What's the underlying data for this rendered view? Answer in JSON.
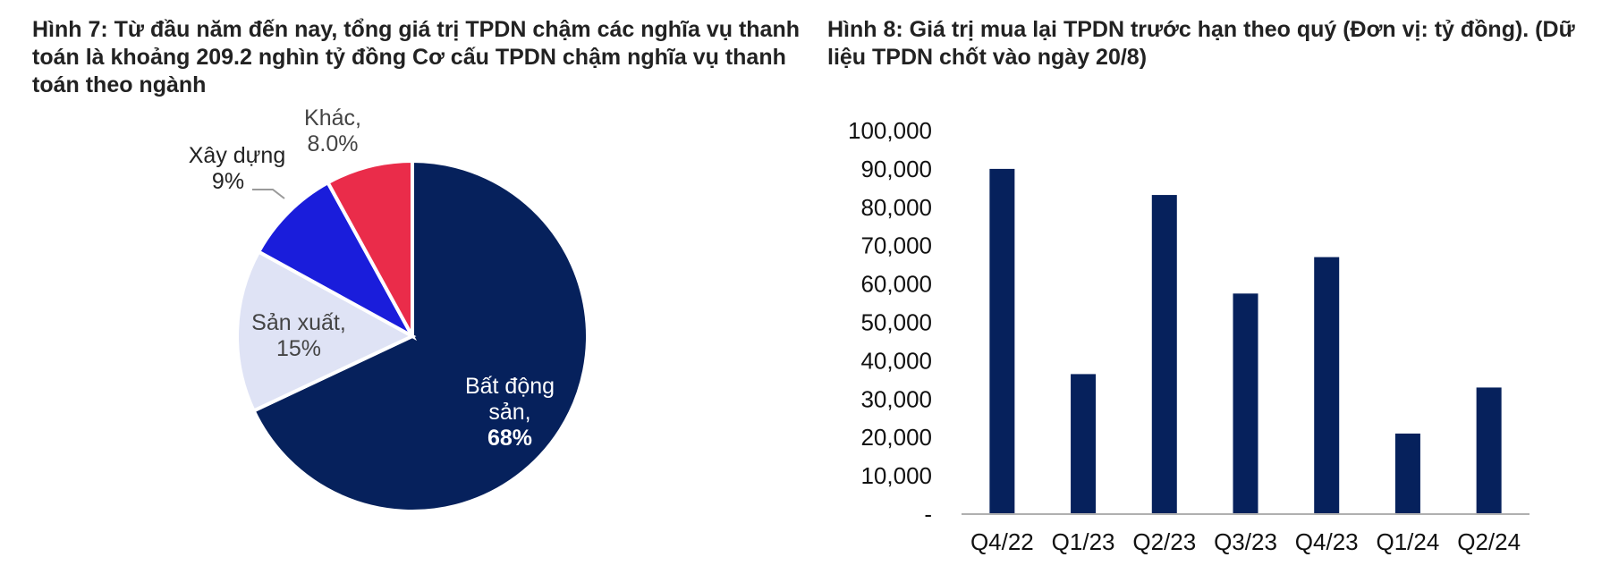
{
  "figures": {
    "fig7_title": "Hình 7: Từ đầu năm đến nay, tổng giá trị TPDN chậm các nghĩa vụ thanh toán là khoảng 209.2 nghìn tỷ đồng Cơ cấu TPDN chậm nghĩa vụ thanh toán theo ngành",
    "fig8_title": "Hình 8: Giá trị mua lại TPDN trước hạn theo quý (Đơn vị: tỷ đồng). (Dữ liệu TPDN chốt vào ngày 20/8)"
  },
  "chart_data": [
    {
      "type": "pie",
      "title": "Hình 7: Từ đầu năm đến nay, tổng giá trị TPDN chậm các nghĩa vụ thanh toán là khoảng 209.2 nghìn tỷ đồng Cơ cấu TPDN chậm nghĩa vụ thanh toán theo ngành",
      "slices": [
        {
          "label": "Bất động sản,",
          "value": 68,
          "display": "68%",
          "color": "#06215c"
        },
        {
          "label": "Sản xuất,",
          "value": 15,
          "display": "15%",
          "color": "#dfe3f5"
        },
        {
          "label": "Xây dựng",
          "value": 9,
          "display": "9%",
          "color": "#1a1ddb"
        },
        {
          "label": "Khác,",
          "value": 8,
          "display": "8.0%",
          "color": "#ea2c4a"
        }
      ],
      "start_angle": "12 o'clock, clockwise",
      "legend": "none"
    },
    {
      "type": "bar",
      "title": "Hình 8: Giá trị mua lại TPDN trước hạn theo quý (Đơn vị: tỷ đồng). (Dữ liệu TPDN chốt vào ngày 20/8)",
      "categories": [
        "Q4/22",
        "Q1/23",
        "Q2/23",
        "Q3/23",
        "Q4/23",
        "Q1/24",
        "Q2/24"
      ],
      "values": [
        90000,
        36500,
        83200,
        57500,
        67000,
        21000,
        33000
      ],
      "ylim": [
        0,
        100000
      ],
      "yticks": [
        0,
        10000,
        20000,
        30000,
        40000,
        50000,
        60000,
        70000,
        80000,
        90000,
        100000
      ],
      "ytick_labels": [
        "-",
        "10,000",
        "20,000",
        "30,000",
        "40,000",
        "50,000",
        "60,000",
        "70,000",
        "80,000",
        "90,000",
        "100,000"
      ],
      "bar_color": "#06215c",
      "grid": false,
      "legend": "none"
    }
  ]
}
